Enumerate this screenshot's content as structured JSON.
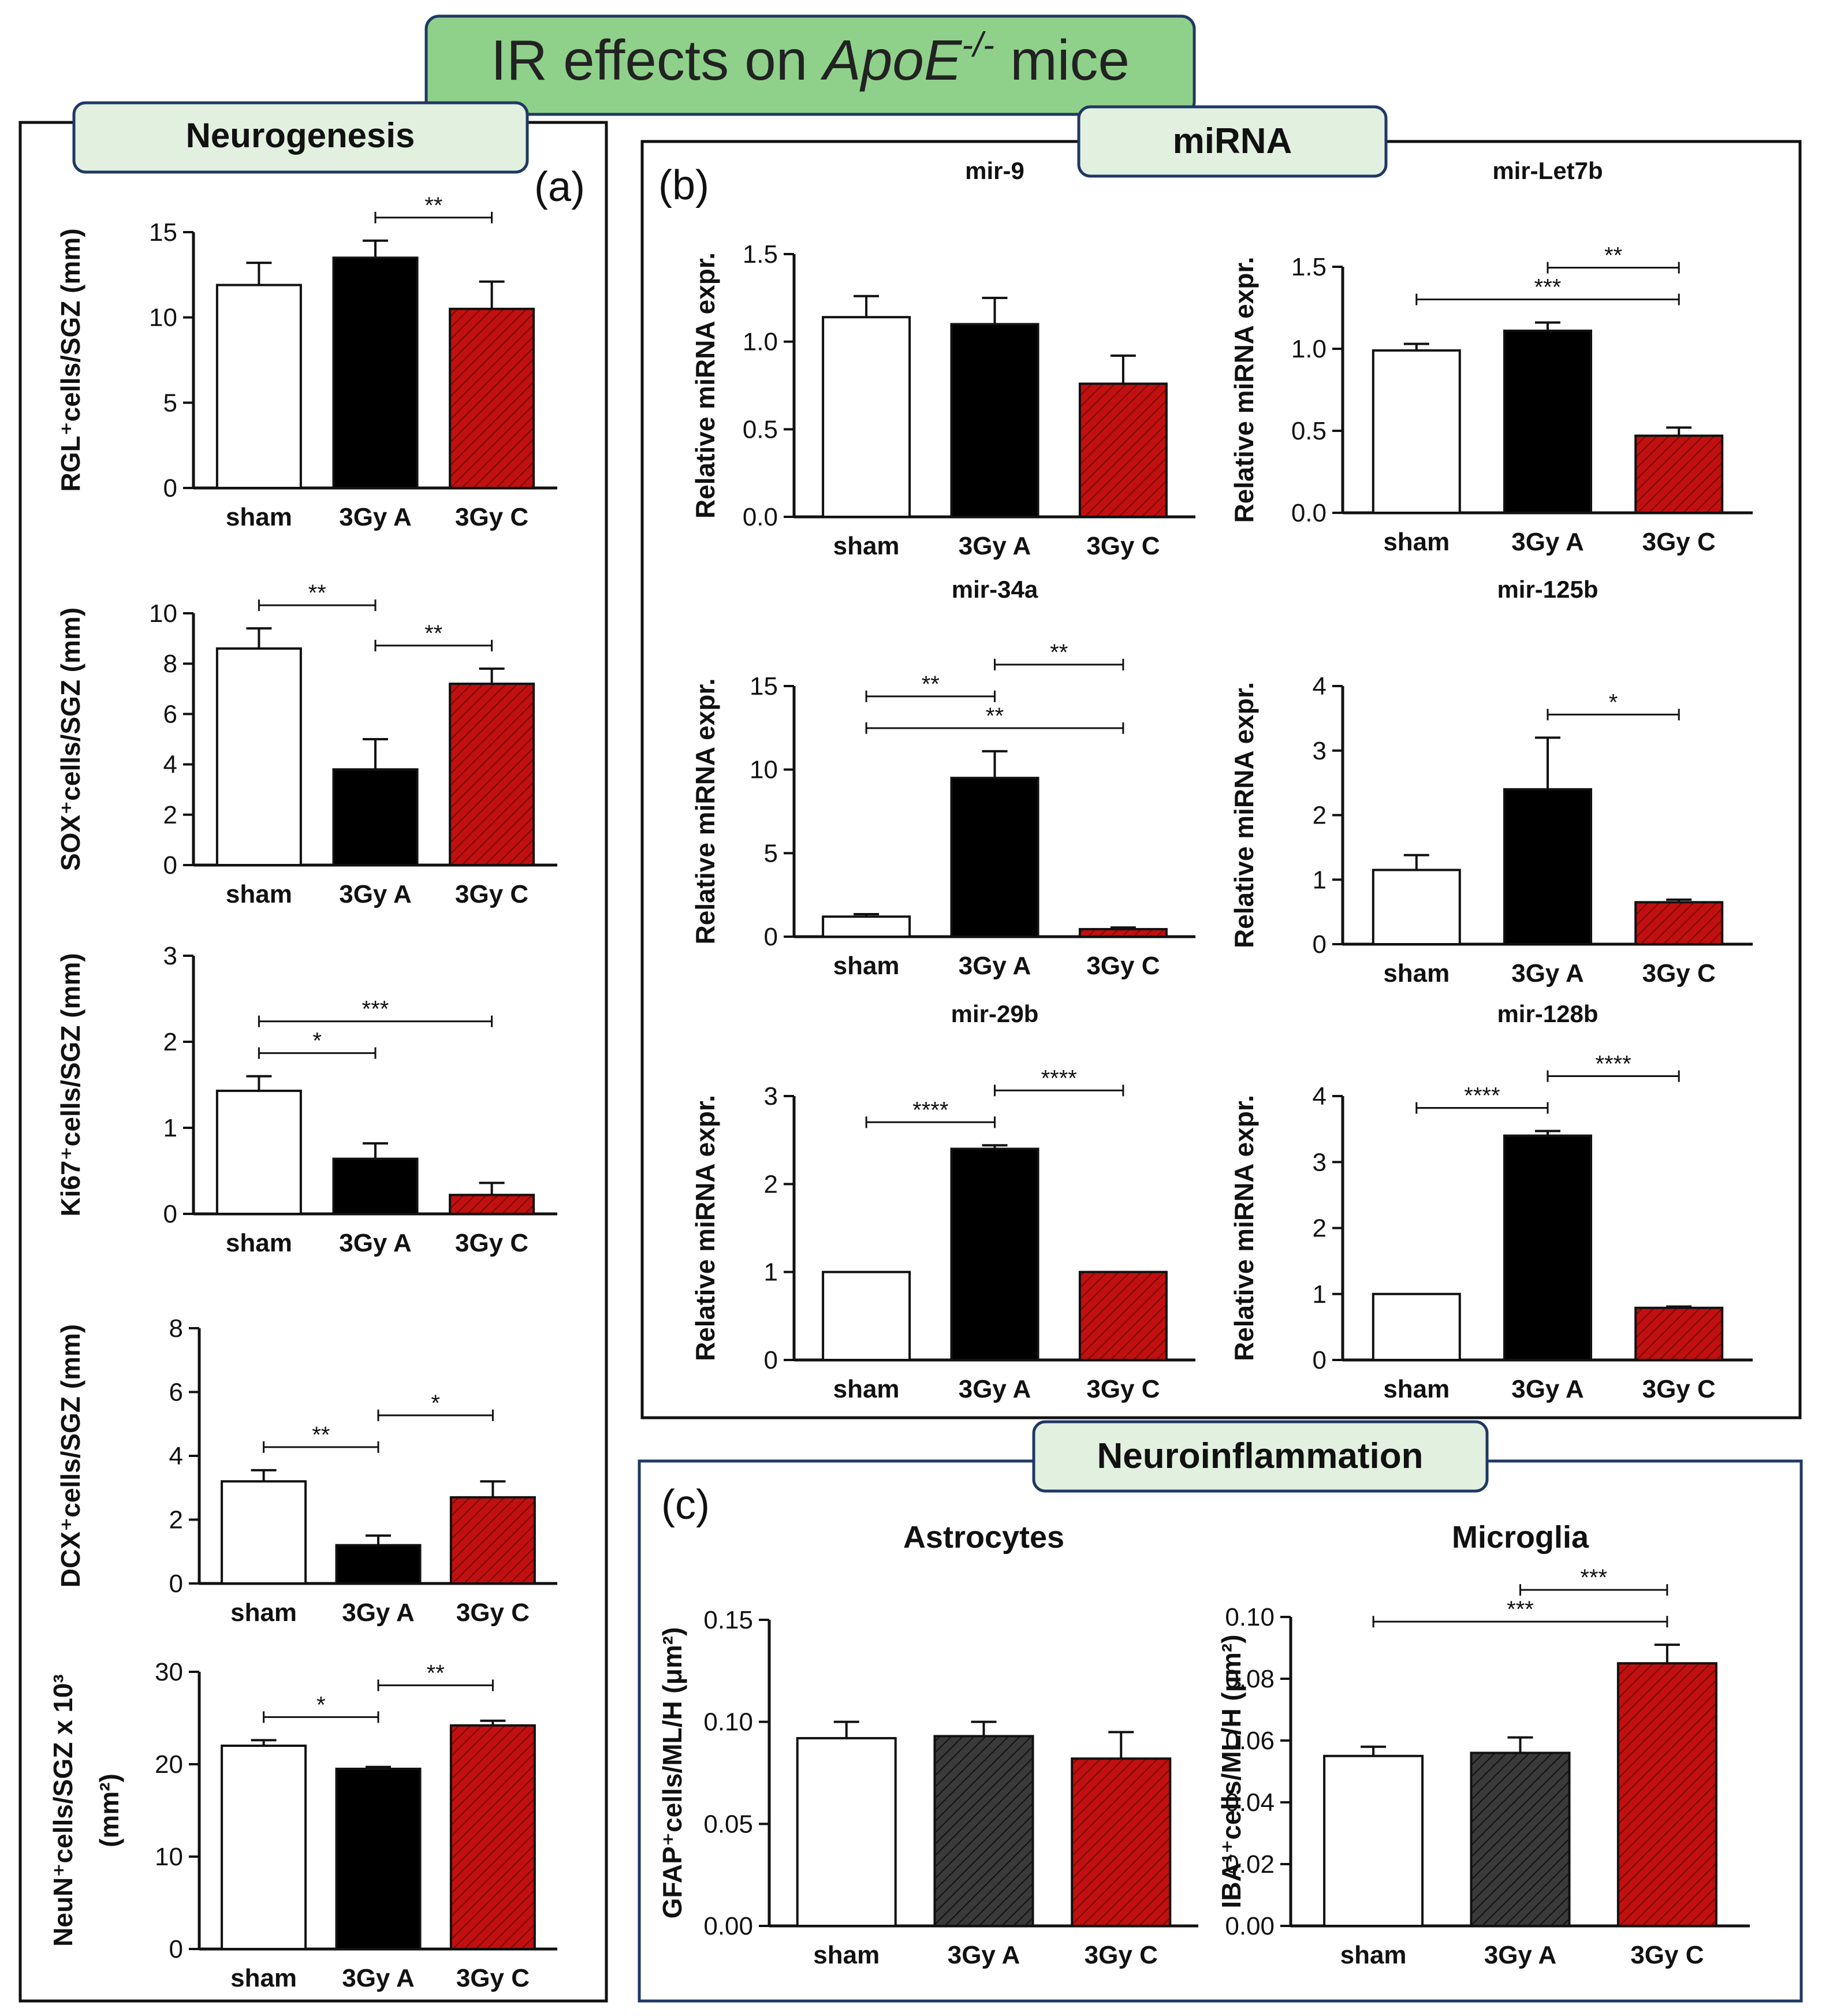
{
  "title": {
    "prefix": "IR effects on ",
    "gene": "ApoE",
    "superscript": "-/-",
    "suffix": " mice"
  },
  "sections": {
    "neurogenesis": {
      "label": "Neurogenesis",
      "letter": "(a)"
    },
    "mirna": {
      "label": "miRNA",
      "letter": "(b)"
    },
    "neuroinflammation": {
      "label": "Neuroinflammation",
      "letter": "(c)"
    }
  },
  "colors": {
    "sham": "#ffffff",
    "a_solid": "#000000",
    "a_hatched": "#333333",
    "c_red": "#c0100f",
    "title_box": "#8fd18a",
    "label_box": "#e2f1df"
  },
  "chart_data": [
    {
      "id": "rgl",
      "type": "bar",
      "title": "",
      "ylabel": "RGL⁺cells/SGZ (mm)",
      "categories": [
        "sham",
        "3Gy A",
        "3Gy C"
      ],
      "values": [
        11.9,
        13.5,
        10.5
      ],
      "errors": [
        1.3,
        1.0,
        1.6
      ],
      "ylim": [
        0,
        15
      ],
      "yticks": [
        0,
        5,
        10,
        15
      ],
      "tick_labels": [
        "0",
        "5",
        "10",
        "15"
      ],
      "a_style": "solid",
      "sig": [
        {
          "from": 1,
          "to": 2,
          "label": "**"
        }
      ]
    },
    {
      "id": "sox",
      "type": "bar",
      "title": "",
      "ylabel": "SOX⁺cells/SGZ (mm)",
      "categories": [
        "sham",
        "3Gy A",
        "3Gy C"
      ],
      "values": [
        8.6,
        3.8,
        7.2
      ],
      "errors": [
        0.8,
        1.2,
        0.6
      ],
      "ylim": [
        0,
        10
      ],
      "yticks": [
        0,
        2,
        4,
        6,
        8,
        10
      ],
      "tick_labels": [
        "0",
        "2",
        "4",
        "6",
        "8",
        "10"
      ],
      "a_style": "solid",
      "sig": [
        {
          "from": 0,
          "to": 1,
          "label": "**"
        },
        {
          "from": 1,
          "to": 2,
          "label": "**"
        }
      ]
    },
    {
      "id": "ki67",
      "type": "bar",
      "title": "",
      "ylabel": "Ki67⁺cells/SGZ (mm)",
      "categories": [
        "sham",
        "3Gy A",
        "3Gy C"
      ],
      "values": [
        1.43,
        0.64,
        0.22
      ],
      "errors": [
        0.17,
        0.18,
        0.14
      ],
      "ylim": [
        0,
        3
      ],
      "yticks": [
        0,
        1,
        2,
        3
      ],
      "tick_labels": [
        "0",
        "1",
        "2",
        "3"
      ],
      "a_style": "solid",
      "sig": [
        {
          "from": 0,
          "to": 1,
          "label": "*"
        },
        {
          "from": 0,
          "to": 2,
          "label": "***"
        }
      ]
    },
    {
      "id": "dcx",
      "type": "bar",
      "title": "",
      "ylabel": "DCX⁺cells/SGZ (mm)",
      "categories": [
        "sham",
        "3Gy A",
        "3Gy C"
      ],
      "values": [
        3.2,
        1.2,
        2.7
      ],
      "errors": [
        0.35,
        0.3,
        0.5
      ],
      "ylim": [
        0,
        8
      ],
      "yticks": [
        0,
        2,
        4,
        6,
        8
      ],
      "tick_labels": [
        "0",
        "2",
        "4",
        "6",
        "8"
      ],
      "a_style": "solid",
      "sig": [
        {
          "from": 0,
          "to": 1,
          "label": "**"
        },
        {
          "from": 1,
          "to": 2,
          "label": "*"
        }
      ]
    },
    {
      "id": "neun",
      "type": "bar",
      "title": "",
      "ylabel": "NeuN⁺cells/SGZ x 10³",
      "ylabel2": "(mm²)",
      "categories": [
        "sham",
        "3Gy A",
        "3Gy C"
      ],
      "values": [
        22,
        19.5,
        24.2
      ],
      "errors": [
        0.6,
        0.2,
        0.5
      ],
      "ylim": [
        0,
        30
      ],
      "yticks": [
        0,
        10,
        20,
        30
      ],
      "tick_labels": [
        "0",
        "10",
        "20",
        "30"
      ],
      "a_style": "solid",
      "sig": [
        {
          "from": 0,
          "to": 1,
          "label": "*"
        },
        {
          "from": 1,
          "to": 2,
          "label": "**"
        }
      ]
    },
    {
      "id": "mir9",
      "type": "bar",
      "title": "mir-9",
      "ylabel": "Relative miRNA expr.",
      "categories": [
        "sham",
        "3Gy A",
        "3Gy C"
      ],
      "values": [
        1.14,
        1.1,
        0.76
      ],
      "errors": [
        0.12,
        0.15,
        0.16
      ],
      "ylim": [
        0,
        1.5
      ],
      "yticks": [
        0,
        0.5,
        1,
        1.5
      ],
      "tick_labels": [
        "0.0",
        "0.5",
        "1.0",
        "1.5"
      ],
      "a_style": "solid",
      "sig": []
    },
    {
      "id": "let7b",
      "type": "bar",
      "title": "mir-Let7b",
      "ylabel": "Relative miRNA expr.",
      "categories": [
        "sham",
        "3Gy A",
        "3Gy C"
      ],
      "values": [
        0.99,
        1.11,
        0.47
      ],
      "errors": [
        0.04,
        0.05,
        0.05
      ],
      "ylim": [
        0,
        1.5
      ],
      "yticks": [
        0,
        0.5,
        1,
        1.5
      ],
      "tick_labels": [
        "0.0",
        "0.5",
        "1.0",
        "1.5"
      ],
      "a_style": "solid",
      "sig": [
        {
          "from": 0,
          "to": 2,
          "label": "***"
        },
        {
          "from": 1,
          "to": 2,
          "label": "**"
        }
      ]
    },
    {
      "id": "mir34a",
      "type": "bar",
      "title": "mir-34a",
      "ylabel": "Relative miRNA expr.",
      "categories": [
        "sham",
        "3Gy A",
        "3Gy C"
      ],
      "values": [
        1.2,
        9.5,
        0.45
      ],
      "errors": [
        0.15,
        1.6,
        0.1
      ],
      "ylim": [
        0,
        15
      ],
      "yticks": [
        0,
        5,
        10,
        15
      ],
      "tick_labels": [
        "0",
        "5",
        "10",
        "15"
      ],
      "a_style": "solid",
      "sig": [
        {
          "from": 0,
          "to": 2,
          "label": "**"
        },
        {
          "from": 0,
          "to": 1,
          "label": "**"
        },
        {
          "from": 1,
          "to": 2,
          "label": "**"
        }
      ]
    },
    {
      "id": "mir125b",
      "type": "bar",
      "title": "mir-125b",
      "ylabel": "Relative miRNA expr.",
      "categories": [
        "sham",
        "3Gy A",
        "3Gy C"
      ],
      "values": [
        1.15,
        2.4,
        0.65
      ],
      "errors": [
        0.23,
        0.8,
        0.04
      ],
      "ylim": [
        0,
        4
      ],
      "yticks": [
        0,
        1,
        2,
        3,
        4
      ],
      "tick_labels": [
        "0",
        "1",
        "2",
        "3",
        "4"
      ],
      "a_style": "solid",
      "sig": [
        {
          "from": 1,
          "to": 2,
          "label": "*"
        }
      ]
    },
    {
      "id": "mir29b",
      "type": "bar",
      "title": "mir-29b",
      "ylabel": "Relative miRNA expr.",
      "categories": [
        "sham",
        "3Gy A",
        "3Gy C"
      ],
      "values": [
        1.0,
        2.4,
        1.0
      ],
      "errors": [
        0.0,
        0.04,
        0.0
      ],
      "ylim": [
        0,
        3
      ],
      "yticks": [
        0,
        1,
        2,
        3
      ],
      "tick_labels": [
        "0",
        "1",
        "2",
        "3"
      ],
      "a_style": "solid",
      "sig": [
        {
          "from": 0,
          "to": 1,
          "label": "****"
        },
        {
          "from": 1,
          "to": 2,
          "label": "****"
        }
      ]
    },
    {
      "id": "mir128b",
      "type": "bar",
      "title": "mir-128b",
      "ylabel": "Relative miRNA expr.",
      "categories": [
        "sham",
        "3Gy A",
        "3Gy C"
      ],
      "values": [
        1.0,
        3.4,
        0.79
      ],
      "errors": [
        0.0,
        0.07,
        0.02
      ],
      "ylim": [
        0,
        4
      ],
      "yticks": [
        0,
        1,
        2,
        3,
        4
      ],
      "tick_labels": [
        "0",
        "1",
        "2",
        "3",
        "4"
      ],
      "a_style": "solid",
      "sig": [
        {
          "from": 0,
          "to": 1,
          "label": "****"
        },
        {
          "from": 1,
          "to": 2,
          "label": "****"
        }
      ]
    },
    {
      "id": "astro",
      "type": "bar",
      "title": "Astrocytes",
      "ylabel": "GFAP⁺cells/ML/H (μm²)",
      "categories": [
        "sham",
        "3Gy A",
        "3Gy C"
      ],
      "values": [
        0.092,
        0.093,
        0.082
      ],
      "errors": [
        0.008,
        0.007,
        0.013
      ],
      "ylim": [
        0,
        0.15
      ],
      "yticks": [
        0,
        0.05,
        0.1,
        0.15
      ],
      "tick_labels": [
        "0.00",
        "0.05",
        "0.10",
        "0.15"
      ],
      "a_style": "hatched",
      "sig": []
    },
    {
      "id": "micro",
      "type": "bar",
      "title": "Microglia",
      "ylabel": "IBA¹⁺cells/ML/H (μm²)",
      "categories": [
        "sham",
        "3Gy A",
        "3Gy C"
      ],
      "values": [
        0.055,
        0.056,
        0.085
      ],
      "errors": [
        0.003,
        0.005,
        0.006
      ],
      "ylim": [
        0,
        0.1
      ],
      "yticks": [
        0,
        0.02,
        0.04,
        0.06,
        0.08,
        0.1
      ],
      "tick_labels": [
        "0.00",
        "0.02",
        "0.04",
        "0.06",
        "0.08",
        "0.10"
      ],
      "a_style": "hatched",
      "sig": [
        {
          "from": 0,
          "to": 2,
          "label": "***"
        },
        {
          "from": 1,
          "to": 2,
          "label": "***"
        }
      ]
    }
  ]
}
